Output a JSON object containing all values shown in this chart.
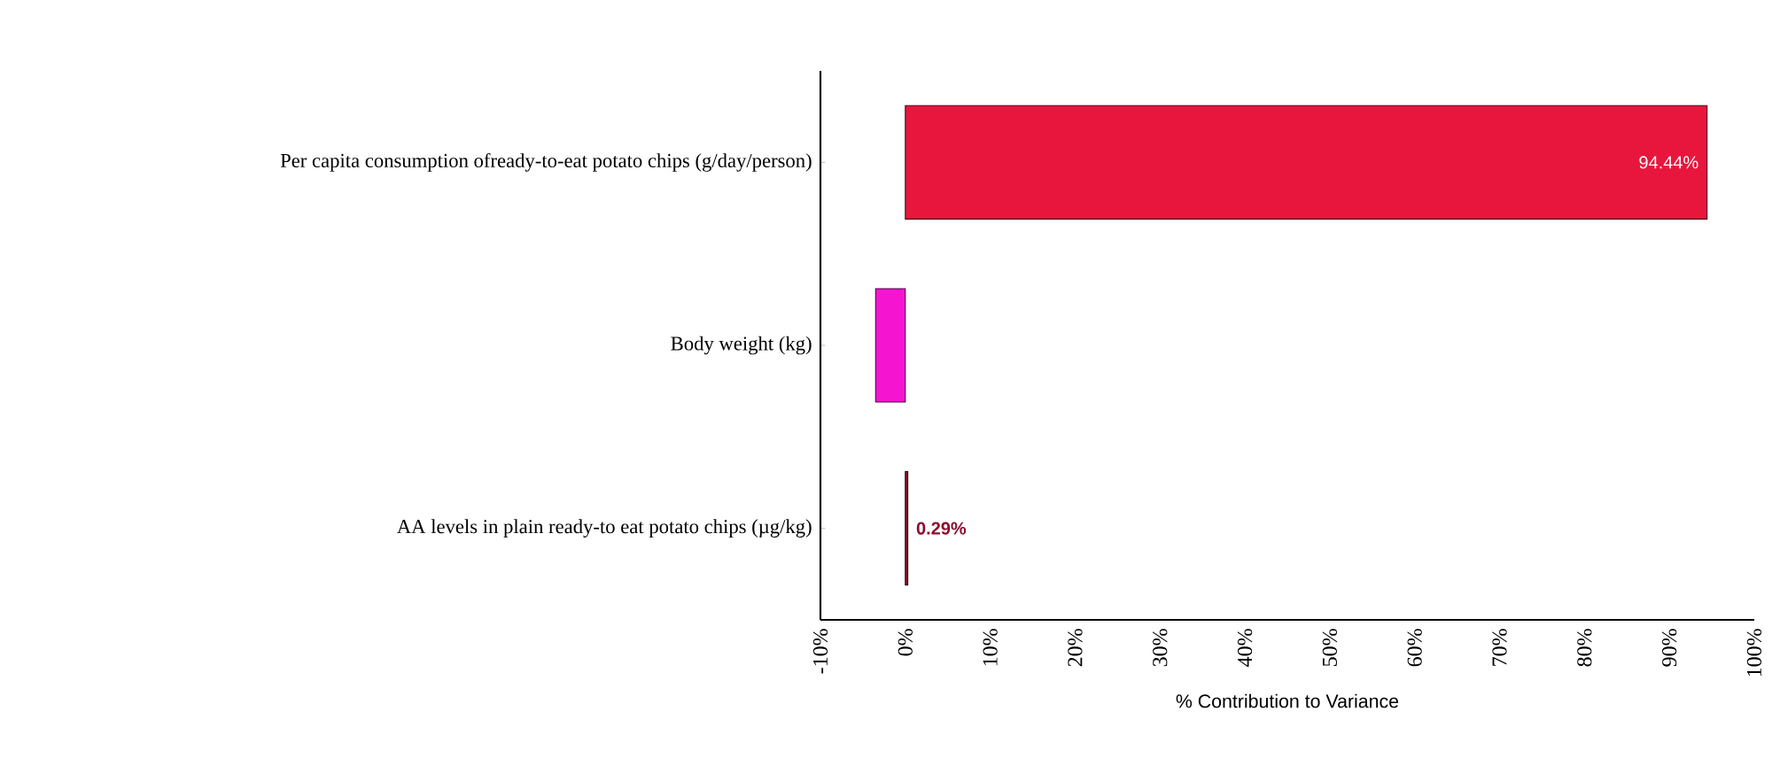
{
  "chart_data": {
    "type": "bar",
    "orientation": "horizontal",
    "xlabel": "% Contribution to Variance",
    "categories": [
      "Per capita consumption ofready-to-eat potato chips (g/day/person)",
      "Body weight (kg)",
      "AA levels in plain ready-to eat potato chips (µg/kg)"
    ],
    "values": [
      94.44,
      -3.5,
      0.29
    ],
    "colors": [
      "#e8163c",
      "#f515d0",
      "#8b1030"
    ],
    "value_labels": [
      "94.44%",
      null,
      "0.29%"
    ],
    "xlim": [
      -10,
      100
    ],
    "xticks": [
      {
        "value": -10,
        "label": "-10%"
      },
      {
        "value": 0,
        "label": "0%"
      },
      {
        "value": 10,
        "label": "10%"
      },
      {
        "value": 20,
        "label": "20%"
      },
      {
        "value": 30,
        "label": "30%"
      },
      {
        "value": 40,
        "label": "40%"
      },
      {
        "value": 50,
        "label": "50%"
      },
      {
        "value": 60,
        "label": "60%"
      },
      {
        "value": 70,
        "label": "70%"
      },
      {
        "value": 80,
        "label": "80%"
      },
      {
        "value": 90,
        "label": "90%"
      },
      {
        "value": 100,
        "label": "100%"
      }
    ]
  }
}
